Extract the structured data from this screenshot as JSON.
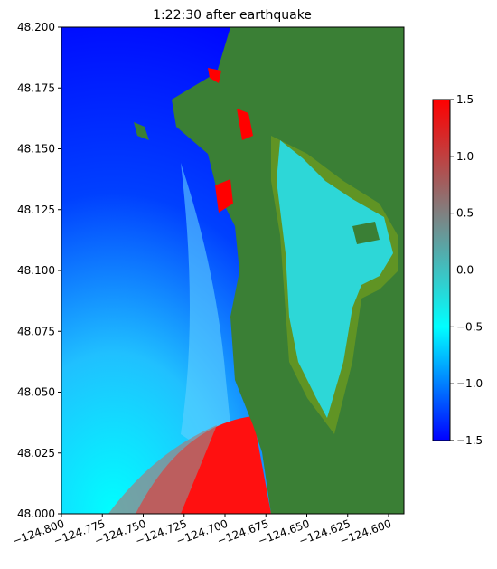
{
  "chart_data": {
    "type": "heatmap",
    "title": "1:22:30 after earthquake",
    "xlim": [
      -124.8,
      -124.5906
    ],
    "ylim": [
      48.0,
      48.2
    ],
    "xticks": [
      {
        "value": -124.8,
        "label": "−124.800"
      },
      {
        "value": -124.775,
        "label": "−124.775"
      },
      {
        "value": -124.75,
        "label": "−124.750"
      },
      {
        "value": -124.725,
        "label": "−124.725"
      },
      {
        "value": -124.7,
        "label": "−124.700"
      },
      {
        "value": -124.675,
        "label": "−124.675"
      },
      {
        "value": -124.65,
        "label": "−124.650"
      },
      {
        "value": -124.625,
        "label": "−124.625"
      },
      {
        "value": -124.6,
        "label": "−124.600"
      }
    ],
    "yticks": [
      {
        "value": 48.0,
        "label": "48.000"
      },
      {
        "value": 48.025,
        "label": "48.025"
      },
      {
        "value": 48.05,
        "label": "48.050"
      },
      {
        "value": 48.075,
        "label": "48.075"
      },
      {
        "value": 48.1,
        "label": "48.100"
      },
      {
        "value": 48.125,
        "label": "48.125"
      },
      {
        "value": 48.15,
        "label": "48.150"
      },
      {
        "value": 48.175,
        "label": "48.175"
      },
      {
        "value": 48.2,
        "label": "48.200"
      }
    ],
    "colorbar": {
      "lim": [
        -1.5,
        1.5
      ],
      "colors": [
        "#0000ff",
        "#00ffff",
        "#808080",
        "#ff0000"
      ],
      "ticks": [
        {
          "value": -1.5,
          "label": "−1.5"
        },
        {
          "value": -1.0,
          "label": "−1.0"
        },
        {
          "value": -0.5,
          "label": "−0.5"
        },
        {
          "value": 0.0,
          "label": "0.0"
        },
        {
          "value": 0.5,
          "label": "0.5"
        },
        {
          "value": 1.0,
          "label": "1.0"
        },
        1.5
      ]
    }
  }
}
